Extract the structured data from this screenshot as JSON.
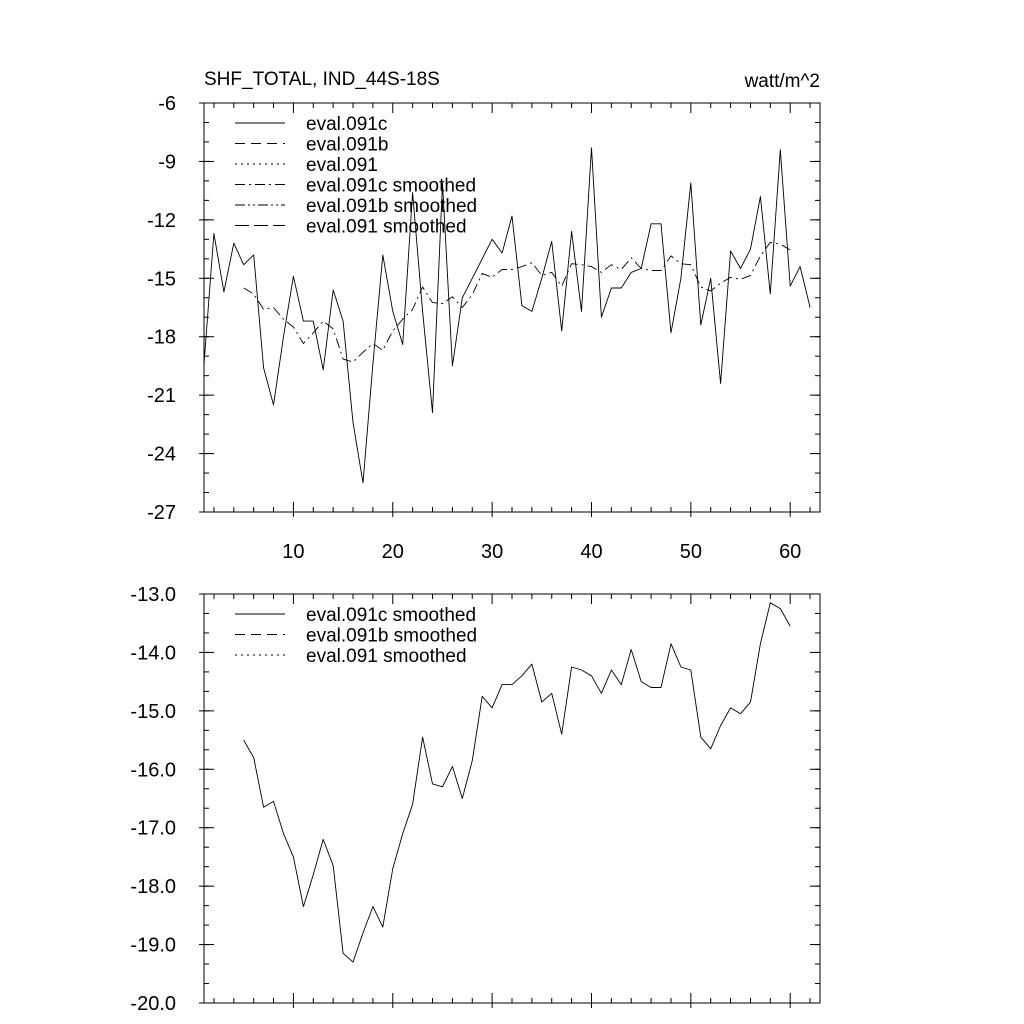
{
  "chart_data": [
    {
      "type": "line",
      "title_left": "SHF_TOTAL, IND_44S-18S",
      "title_right": "watt/m^2",
      "xlim": [
        1,
        63
      ],
      "ylim": [
        -27,
        -6
      ],
      "x_ticks": [
        10,
        20,
        30,
        40,
        50,
        60
      ],
      "x_tick_labels": [
        "10",
        "20",
        "30",
        "40",
        "50",
        "60"
      ],
      "y_ticks": [
        -6,
        -9,
        -12,
        -15,
        -18,
        -21,
        -24,
        -27
      ],
      "y_tick_labels": [
        "-6",
        "-9",
        "-12",
        "-15",
        "-18",
        "-21",
        "-24",
        "-27"
      ],
      "legend_position": "top-left",
      "legend": [
        {
          "label": "eval.091c",
          "dash": "solid"
        },
        {
          "label": "eval.091b",
          "dash": "dash"
        },
        {
          "label": "eval.091",
          "dash": "dot"
        },
        {
          "label": "eval.091c smoothed",
          "dash": "dashdot"
        },
        {
          "label": "eval.091b smoothed",
          "dash": "dashdotdot"
        },
        {
          "label": "eval.091 smoothed",
          "dash": "longdash"
        }
      ],
      "series": [
        {
          "name": "eval.091c",
          "dash": "solid",
          "x": [
            1,
            2,
            3,
            4,
            5,
            6,
            7,
            8,
            9,
            10,
            11,
            12,
            13,
            14,
            15,
            16,
            17,
            18,
            19,
            20,
            21,
            22,
            23,
            24,
            25,
            26,
            27,
            28,
            29,
            30,
            31,
            32,
            33,
            34,
            35,
            36,
            37,
            38,
            39,
            40,
            41,
            42,
            43,
            44,
            45,
            46,
            47,
            48,
            49,
            50,
            51,
            52,
            53,
            54,
            55,
            56,
            57,
            58,
            59,
            60,
            61,
            62
          ],
          "values": [
            -19.4,
            -12.7,
            -15.7,
            -13.2,
            -14.3,
            -13.8,
            -19.6,
            -21.5,
            -18.0,
            -14.9,
            -17.2,
            -17.2,
            -19.7,
            -15.6,
            -17.2,
            -22.4,
            -25.5,
            -19.4,
            -13.8,
            -16.7,
            -18.4,
            -10.6,
            -16.7,
            -21.9,
            -10.1,
            -19.5,
            -16.0,
            -15.0,
            -14.0,
            -13.0,
            -13.7,
            -11.8,
            -16.4,
            -16.7,
            -15.0,
            -13.1,
            -17.7,
            -12.6,
            -16.7,
            -8.3,
            -17.0,
            -15.5,
            -15.5,
            -14.7,
            -14.5,
            -12.2,
            -12.2,
            -17.8,
            -15.0,
            -10.1,
            -17.4,
            -15.0,
            -20.4,
            -13.6,
            -14.5,
            -13.5,
            -10.8,
            -15.8,
            -8.4,
            -15.4,
            -14.4,
            -16.5
          ]
        },
        {
          "name": "eval.091c smoothed",
          "dash": "dashdot",
          "x": [
            5,
            6,
            7,
            8,
            9,
            10,
            11,
            12,
            13,
            14,
            15,
            16,
            17,
            18,
            19,
            20,
            21,
            22,
            23,
            24,
            25,
            26,
            27,
            28,
            29,
            30,
            31,
            32,
            33,
            34,
            35,
            36,
            37,
            38,
            39,
            40,
            41,
            42,
            43,
            44,
            45,
            46,
            47,
            48,
            49,
            50,
            51,
            52,
            53,
            54,
            55,
            56,
            57,
            58,
            59,
            60
          ],
          "values": [
            -15.5,
            -15.8,
            -16.6,
            -16.5,
            -17.1,
            -17.5,
            -18.35,
            -17.8,
            -17.2,
            -17.6,
            -19.15,
            -19.3,
            -18.8,
            -18.35,
            -18.7,
            -17.7,
            -17.1,
            -16.6,
            -15.45,
            -16.25,
            -16.3,
            -15.95,
            -16.5,
            -15.85,
            -14.75,
            -14.95,
            -14.55,
            -14.55,
            -14.4,
            -14.2,
            -14.85,
            -14.7,
            -15.4,
            -14.25,
            -14.3,
            -14.4,
            -14.7,
            -14.3,
            -14.55,
            -13.95,
            -14.5,
            -14.6,
            -14.6,
            -13.85,
            -14.25,
            -14.3,
            -15.45,
            -15.65,
            -15.25,
            -14.95,
            -15.05,
            -14.85,
            -13.85,
            -13.15,
            -13.25,
            -13.55
          ]
        }
      ]
    },
    {
      "type": "line",
      "xlim": [
        1,
        63
      ],
      "ylim": [
        -20,
        -13
      ],
      "x_ticks": [
        10,
        20,
        30,
        40,
        50,
        60
      ],
      "y_ticks": [
        -13,
        -14,
        -15,
        -16,
        -17,
        -18,
        -19,
        -20
      ],
      "y_tick_labels": [
        "-13.0",
        "-14.0",
        "-15.0",
        "-16.0",
        "-17.0",
        "-18.0",
        "-19.0",
        "-20.0"
      ],
      "legend_position": "top-left",
      "legend": [
        {
          "label": "eval.091c smoothed",
          "dash": "solid"
        },
        {
          "label": "eval.091b smoothed",
          "dash": "dash"
        },
        {
          "label": "eval.091 smoothed",
          "dash": "dot"
        }
      ],
      "series": [
        {
          "name": "eval.091c smoothed",
          "dash": "solid",
          "x": [
            5,
            6,
            7,
            8,
            9,
            10,
            11,
            12,
            13,
            14,
            15,
            16,
            17,
            18,
            19,
            20,
            21,
            22,
            23,
            24,
            25,
            26,
            27,
            28,
            29,
            30,
            31,
            32,
            33,
            34,
            35,
            36,
            37,
            38,
            39,
            40,
            41,
            42,
            43,
            44,
            45,
            46,
            47,
            48,
            49,
            50,
            51,
            52,
            53,
            54,
            55,
            56,
            57,
            58,
            59,
            60
          ],
          "values": [
            -15.5,
            -15.8,
            -16.65,
            -16.55,
            -17.1,
            -17.5,
            -18.35,
            -17.8,
            -17.2,
            -17.65,
            -19.15,
            -19.3,
            -18.8,
            -18.35,
            -18.7,
            -17.7,
            -17.1,
            -16.6,
            -15.45,
            -16.25,
            -16.3,
            -15.95,
            -16.5,
            -15.85,
            -14.75,
            -14.95,
            -14.55,
            -14.55,
            -14.4,
            -14.2,
            -14.85,
            -14.7,
            -15.4,
            -14.25,
            -14.3,
            -14.4,
            -14.7,
            -14.3,
            -14.55,
            -13.95,
            -14.5,
            -14.6,
            -14.6,
            -13.85,
            -14.25,
            -14.3,
            -15.45,
            -15.65,
            -15.25,
            -14.95,
            -15.05,
            -14.85,
            -13.85,
            -13.15,
            -13.25,
            -13.55
          ]
        }
      ]
    }
  ]
}
